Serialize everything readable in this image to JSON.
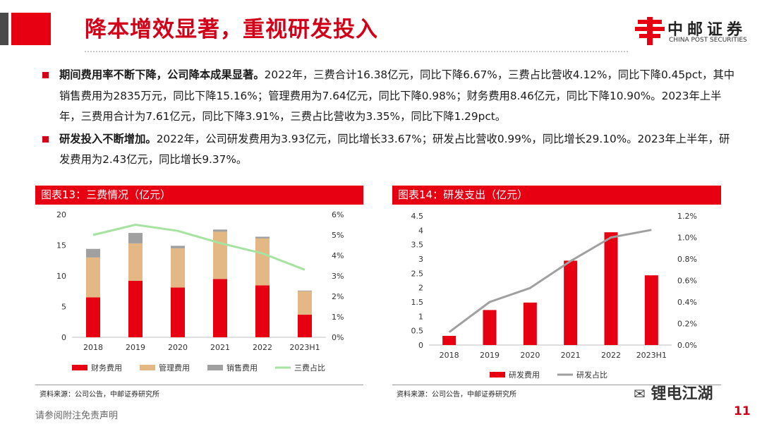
{
  "header": {
    "title": "降本增效显著，重视研发投入",
    "logo_cn": "中邮证券",
    "logo_en": "CHINA POST SECURITIES"
  },
  "bullets": [
    {
      "bold": "期间费用率不断下降，公司降本成果显著。",
      "text": "2022年，三费合计16.38亿元，同比下降6.67%，三费占比营收4.12%，同比下降0.45pct，其中销售费用为2835万元，同比下降15.16%；管理费用为7.64亿元，同比下降0.98%；财务费用8.46亿元，同比下降10.90%。2023年上半年，三费用合计为7.61亿元，同比下降3.91%，三费占比营收为3.35%，同比下降1.29pct。"
    },
    {
      "bold": "研发投入不断增加。",
      "text": "2022年，公司研发费用为3.93亿元，同比增长33.67%；研发占比营收0.99%，同比增长29.10%。2023年上半年，研发费用为2.43亿元，同比增长9.37%。"
    }
  ],
  "chart13": {
    "header": "图表13：三费情况（亿元）",
    "source": "资料来源：公司公告，中邮证券研究所",
    "yticks_left": [
      "20",
      "15",
      "10",
      "5",
      "0"
    ],
    "yticks_right": [
      "6%",
      "5%",
      "4%",
      "3%",
      "2%",
      "1%",
      "0%"
    ],
    "legend": [
      "财务费用",
      "管理费用",
      "销售费用",
      "三费占比"
    ]
  },
  "chart14": {
    "header": "图表14：研发支出（亿元）",
    "source": "资料来源：公司公告，中邮证券研究所",
    "yticks_left": [
      "4.5",
      "4",
      "3.5",
      "3",
      "2.5",
      "2",
      "1.5",
      "1",
      "0.5",
      "0"
    ],
    "yticks_right": [
      "1.2%",
      "1.0%",
      "0.8%",
      "0.6%",
      "0.4%",
      "0.2%",
      "0.0%"
    ],
    "legend": [
      "研发费用",
      "研发占比"
    ]
  },
  "chart_data": [
    {
      "type": "bar",
      "stacked": true,
      "title": "图表13：三费情况（亿元）",
      "categories": [
        "2018",
        "2019",
        "2020",
        "2021",
        "2022",
        "2023H1"
      ],
      "series": [
        {
          "name": "财务费用",
          "values": [
            6.5,
            9.2,
            8.1,
            9.5,
            8.46,
            3.7
          ],
          "color": "#e60012"
        },
        {
          "name": "管理费用",
          "values": [
            6.5,
            6.1,
            6.4,
            7.7,
            7.64,
            3.8
          ],
          "color": "#e3b885"
        },
        {
          "name": "销售费用",
          "values": [
            1.4,
            1.7,
            0.4,
            0.35,
            0.28,
            0.11
          ],
          "color": "#a0a0a0"
        },
        {
          "name": "三费占比",
          "type": "line",
          "axis": "right",
          "values": [
            5.0,
            5.5,
            5.2,
            4.6,
            4.1,
            3.3
          ],
          "color": "#a6e3a1"
        }
      ],
      "ylim": [
        0,
        20
      ],
      "ylim_right": [
        0,
        6
      ],
      "legend_position": "bottom"
    },
    {
      "type": "bar",
      "title": "图表14：研发支出（亿元）",
      "categories": [
        "2018",
        "2019",
        "2020",
        "2021",
        "2022",
        "2023H1"
      ],
      "series": [
        {
          "name": "研发费用",
          "values": [
            0.32,
            1.22,
            1.48,
            2.94,
            3.93,
            2.43
          ],
          "color": "#e60012"
        },
        {
          "name": "研发占比",
          "type": "line",
          "axis": "right",
          "values": [
            0.12,
            0.4,
            0.53,
            0.78,
            1.0,
            1.07
          ],
          "color": "#a0a0a0"
        }
      ],
      "ylim": [
        0,
        4.5
      ],
      "ylim_right": [
        0,
        1.2
      ],
      "legend_position": "bottom"
    }
  ],
  "footer": {
    "disclaimer": "请参阅附注免责声明",
    "page": "11",
    "watermark": "锂电江湖"
  }
}
